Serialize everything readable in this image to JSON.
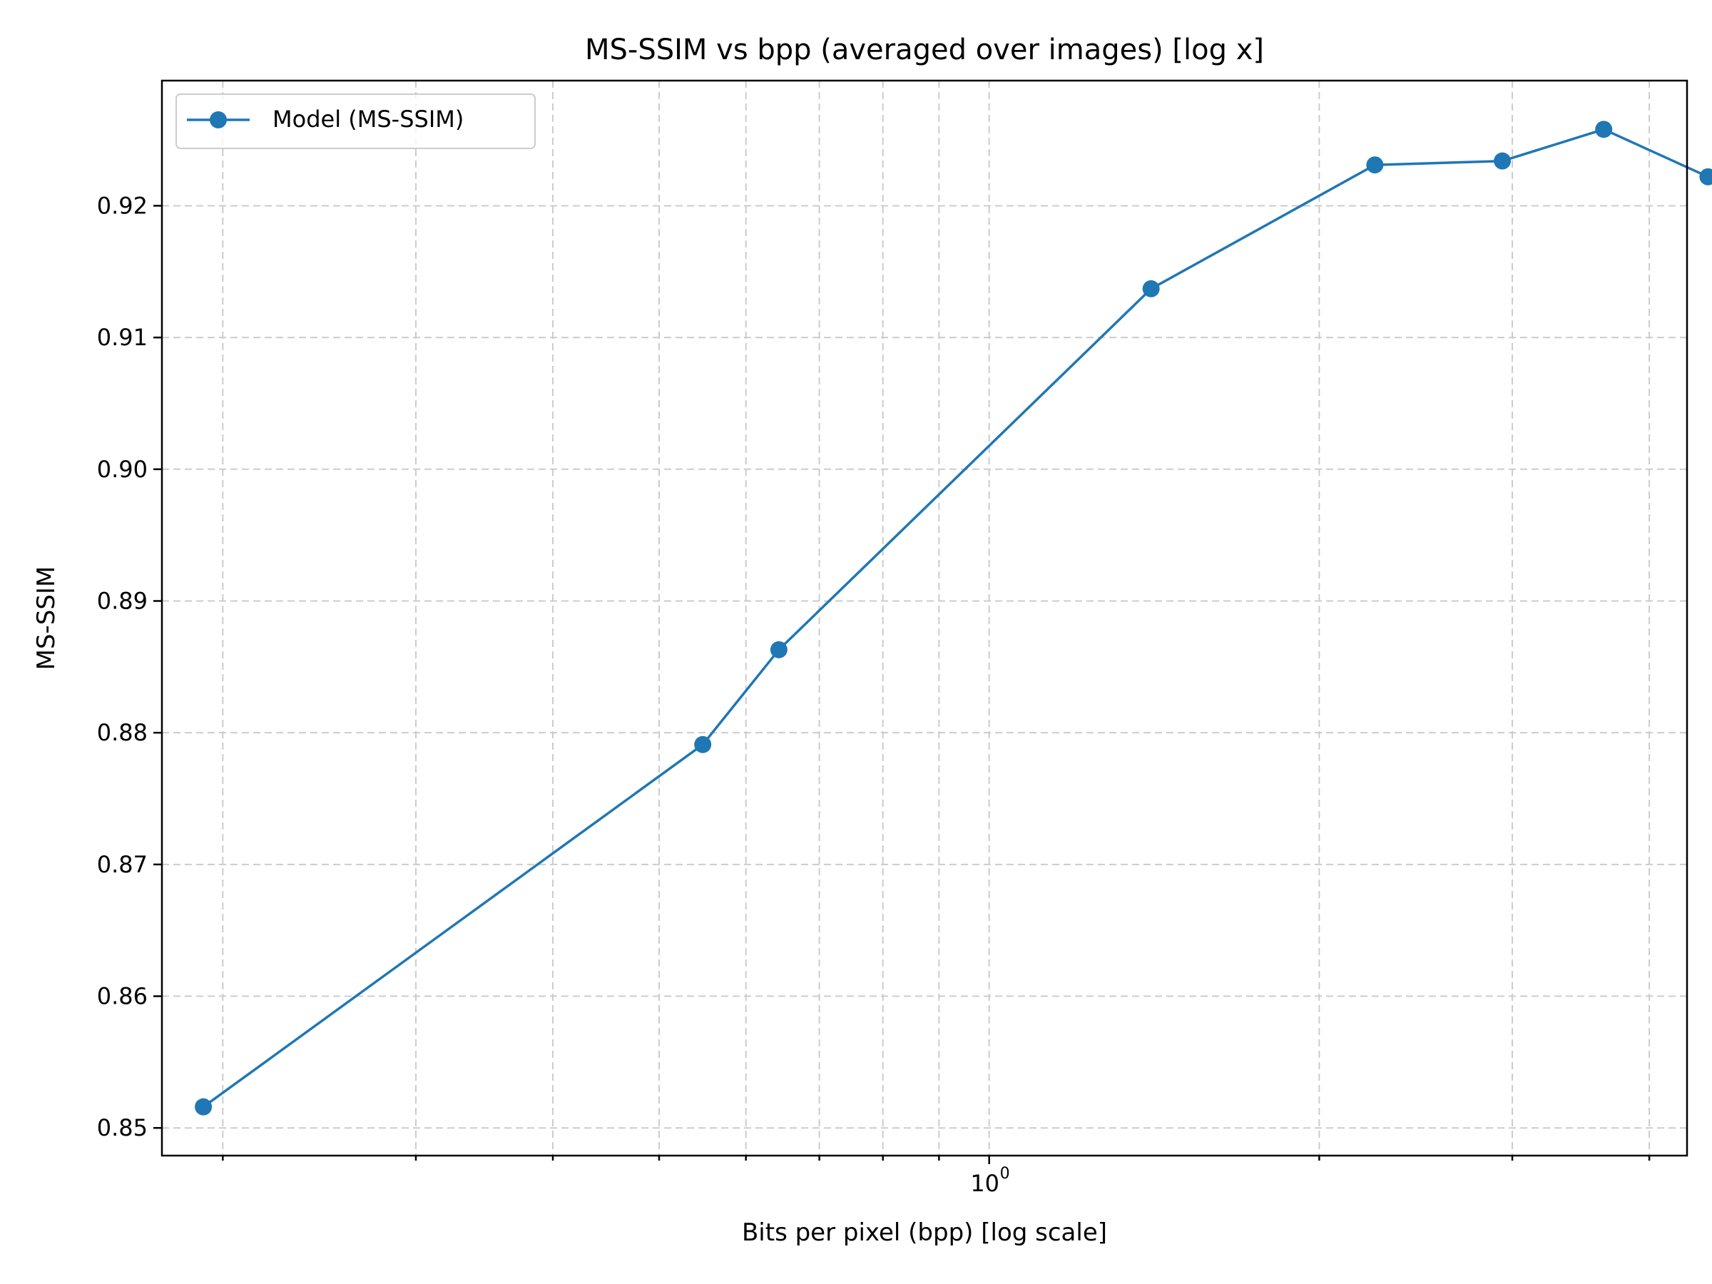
{
  "chart_data": {
    "type": "line",
    "title": "MS-SSIM vs bpp (averaged over images) [log x]",
    "xlabel": "Bits per pixel (bpp) [log scale]",
    "ylabel": "MS-SSIM",
    "xscale": "log",
    "xlim": [
      0.176,
      4.33
    ],
    "ylim": [
      0.8479,
      0.9295
    ],
    "x_major_ticks": [
      {
        "value": 1,
        "label": "10",
        "exponent": "0"
      }
    ],
    "x_minor_ticks": [
      0.2,
      0.3,
      0.4,
      0.5,
      0.6,
      0.7,
      0.8,
      0.9,
      2,
      3,
      4
    ],
    "y_ticks": [
      0.85,
      0.86,
      0.87,
      0.88,
      0.89,
      0.9,
      0.91,
      0.92
    ],
    "y_tick_labels": [
      "0.85",
      "0.86",
      "0.87",
      "0.88",
      "0.89",
      "0.90",
      "0.91",
      "0.92"
    ],
    "grid": true,
    "legend_position": "top-left",
    "color": "#1f77b4",
    "series": [
      {
        "name": "Model (MS-SSIM)",
        "x": [
          0.192,
          0.548,
          0.643,
          1.405,
          2.248,
          2.938,
          3.635,
          4.525
        ],
        "y": [
          0.8516,
          0.8791,
          0.8863,
          0.9137,
          0.9231,
          0.9234,
          0.9258,
          0.9222
        ]
      }
    ]
  }
}
